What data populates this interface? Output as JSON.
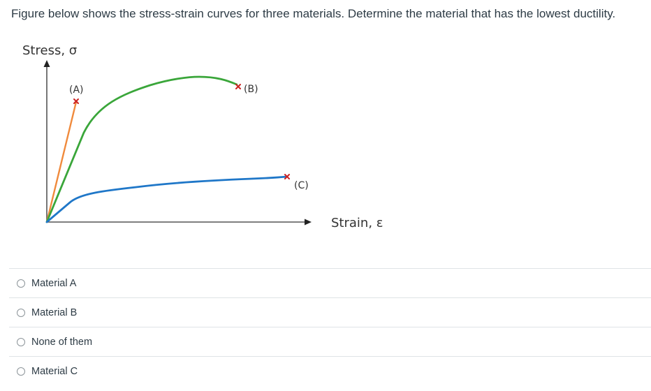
{
  "question": {
    "text": "Figure below shows the stress-strain curves for three materials. Determine the material that has the lowest ductility."
  },
  "figure": {
    "y_axis_label": "Stress, σ",
    "x_axis_label": "Strain, ε",
    "curve_labels": {
      "a": "(A)",
      "b": "(B)",
      "c": "(C)"
    },
    "colors": {
      "curve_a": "#f08a3c",
      "curve_b": "#3aa63a",
      "curve_c": "#1f77c8",
      "fracture_mark": "#cc2222",
      "axes": "#555555"
    }
  },
  "options": [
    {
      "label": "Material A",
      "selected": false
    },
    {
      "label": "Material B",
      "selected": false
    },
    {
      "label": "None of them",
      "selected": false
    },
    {
      "label": "Material C",
      "selected": false
    }
  ]
}
